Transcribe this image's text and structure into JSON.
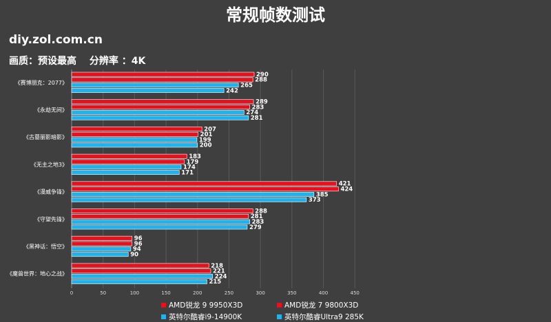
{
  "header": {
    "title": "常规帧数测试",
    "site": "diy.zol.com.cn",
    "quality": "画质：预设最高　 分辨率 ：4K"
  },
  "colors": {
    "red": "#e3121e",
    "blue": "#22b2ea",
    "background": "#3f3f3f"
  },
  "chart_data": {
    "type": "bar",
    "orientation": "horizontal",
    "title": "常规帧数测试",
    "categories": [
      "《赛博朋克：2077》",
      "《永劫无间》",
      "《古墓丽影暗影》",
      "《无主之地3》",
      "《漫威争锋》",
      "《守望先锋》",
      "《黑神话：悟空》",
      "《魔兽世界：地心之战》"
    ],
    "series": [
      {
        "name": "AMD锐龙 9 9950X3D",
        "color": "#e3121e",
        "values": [
          290,
          289,
          207,
          183,
          421,
          288,
          96,
          218
        ]
      },
      {
        "name": "AMD锐龙 7 9800X3D",
        "color": "#e3121e",
        "values": [
          288,
          283,
          201,
          179,
          424,
          281,
          96,
          221
        ]
      },
      {
        "name": "英特尔酷睿i9-14900K",
        "color": "#22b2ea",
        "values": [
          265,
          274,
          199,
          174,
          385,
          283,
          94,
          224
        ]
      },
      {
        "name": "英特尔酷睿Ultra9 285K",
        "color": "#22b2ea",
        "values": [
          242,
          281,
          200,
          171,
          373,
          279,
          90,
          215
        ]
      }
    ],
    "xticks": [
      "0",
      "50",
      "100",
      "150",
      "200",
      "250",
      "300",
      "350",
      "400",
      "450"
    ],
    "xlim": [
      0,
      450
    ],
    "grid": true,
    "legend_position": "bottom"
  }
}
